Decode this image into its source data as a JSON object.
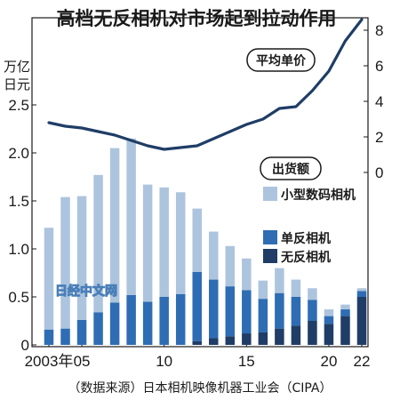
{
  "title": "高档无反相机对市场起到拉动作用",
  "source": "（数据来源）日本相机映像机器工业会（CIPA）",
  "watermark": "日经中文网",
  "chart_data": {
    "type": "bar",
    "categories": [
      "2003年",
      "2004",
      "2005",
      "2006",
      "2007",
      "2008",
      "2009",
      "2010",
      "2011",
      "2012",
      "2013",
      "2014",
      "2015",
      "2016",
      "2017",
      "2018",
      "2019",
      "2020",
      "2021",
      "2022"
    ],
    "x_tick_labels": [
      {
        "category": "2003年",
        "label": "2003年"
      },
      {
        "category": "2005",
        "label": "05"
      },
      {
        "category": "2010",
        "label": "10"
      },
      {
        "category": "2015",
        "label": "15"
      },
      {
        "category": "2020",
        "label": "20"
      },
      {
        "category": "2022",
        "label": "22"
      }
    ],
    "left_axis": {
      "unit_line1": "万亿",
      "unit_line2": "日元",
      "ylim": [
        0,
        2.5
      ],
      "ticks": [
        "0",
        "0.5",
        "1.0",
        "1.5",
        "2.0",
        "2.5"
      ]
    },
    "right_axis": {
      "ylim": [
        0,
        8
      ],
      "ticks": [
        "0",
        "2",
        "4",
        "6",
        "8"
      ]
    },
    "stack_label": "出货额",
    "series": [
      {
        "name": "无反相机",
        "color": "#1f3d66",
        "values": [
          0,
          0,
          0,
          0,
          0,
          0,
          0,
          0,
          0,
          0.04,
          0.07,
          0.09,
          0.12,
          0.13,
          0.17,
          0.2,
          0.25,
          0.22,
          0.3,
          0.5
        ]
      },
      {
        "name": "单反相机",
        "color": "#2e6db4",
        "values": [
          0.16,
          0.17,
          0.26,
          0.34,
          0.44,
          0.52,
          0.45,
          0.5,
          0.53,
          0.72,
          0.61,
          0.52,
          0.45,
          0.35,
          0.37,
          0.3,
          0.22,
          0.08,
          0.07,
          0.06
        ]
      },
      {
        "name": "小型数码相机",
        "color": "#adc4de",
        "values": [
          1.06,
          1.37,
          1.29,
          1.43,
          1.61,
          1.63,
          1.22,
          1.14,
          1.06,
          0.66,
          0.5,
          0.42,
          0.33,
          0.19,
          0.26,
          0.18,
          0.12,
          0.07,
          0.05,
          0.03
        ]
      }
    ],
    "line": {
      "name": "平均单价",
      "color": "#1f3d66",
      "axis": "right",
      "values": [
        2.8,
        2.6,
        2.5,
        2.3,
        2.1,
        1.8,
        1.5,
        1.3,
        1.4,
        1.5,
        1.9,
        2.3,
        2.7,
        3.0,
        3.6,
        3.7,
        4.6,
        5.7,
        7.4,
        8.6
      ]
    }
  }
}
